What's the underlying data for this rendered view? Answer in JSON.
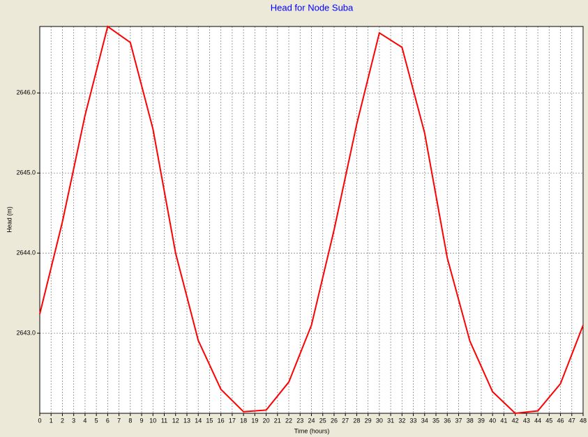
{
  "chart_data": {
    "type": "line",
    "title": "Head for Node Suba",
    "x_label": "Time (hours)",
    "y_label": "Head (m)",
    "x": [
      0,
      2,
      4,
      6,
      8,
      10,
      12,
      14,
      16,
      18,
      20,
      22,
      24,
      26,
      28,
      30,
      32,
      34,
      36,
      38,
      40,
      42,
      44,
      46,
      48
    ],
    "series": [
      {
        "name": "Head",
        "color": "#ff0000",
        "values": [
          2643.24,
          2644.39,
          2645.72,
          2646.83,
          2646.63,
          2645.55,
          2644.0,
          2642.91,
          2642.3,
          2642.02,
          2642.04,
          2642.39,
          2643.1,
          2644.29,
          2645.61,
          2646.75,
          2646.57,
          2645.5,
          2643.94,
          2642.9,
          2642.27,
          2642.0,
          2642.03,
          2642.37,
          2643.1
        ]
      }
    ],
    "xlim": [
      0,
      48
    ],
    "xticks": [
      0,
      1,
      2,
      3,
      4,
      5,
      6,
      7,
      8,
      9,
      10,
      11,
      12,
      13,
      14,
      15,
      16,
      17,
      18,
      19,
      20,
      21,
      22,
      23,
      24,
      25,
      26,
      27,
      28,
      29,
      30,
      31,
      32,
      33,
      34,
      35,
      36,
      37,
      38,
      39,
      40,
      41,
      42,
      43,
      44,
      45,
      46,
      47,
      48
    ],
    "ylim": [
      2642.0,
      2646.83
    ],
    "yticks": [
      {
        "value": 2643,
        "label": "2643.0"
      },
      {
        "value": 2644,
        "label": "2644.0"
      },
      {
        "value": 2645,
        "label": "2645.0"
      },
      {
        "value": 2646,
        "label": "2646.0"
      }
    ],
    "grid": true
  }
}
